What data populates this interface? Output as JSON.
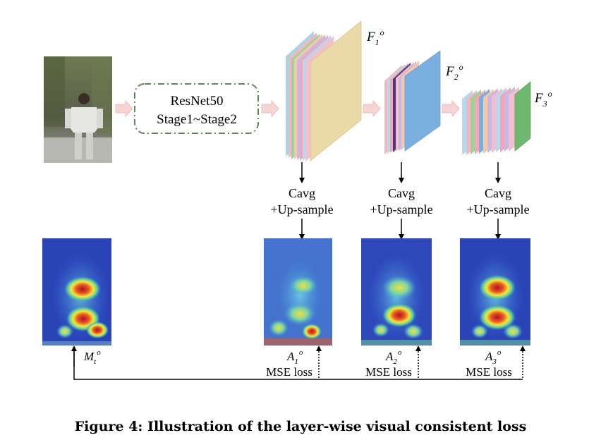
{
  "backbone": {
    "line1": "ResNet50",
    "line2": "Stage1~Stage2"
  },
  "features": [
    {
      "base": "F",
      "sub": "1",
      "sup": "o"
    },
    {
      "base": "F",
      "sub": "2",
      "sup": "o"
    },
    {
      "base": "F",
      "sub": "3",
      "sup": "o"
    }
  ],
  "pool_op": {
    "line1": "Cavg",
    "line2": "+Up-sample"
  },
  "attention_maps": [
    {
      "base": "A",
      "sub": "1",
      "sup": "o"
    },
    {
      "base": "A",
      "sub": "2",
      "sup": "o"
    },
    {
      "base": "A",
      "sub": "3",
      "sup": "o"
    }
  ],
  "target_map": {
    "base": "M",
    "sub": "t",
    "sup": "o"
  },
  "loss_label": "MSE loss",
  "caption": "Figure 4: Illustration of the layer-wise visual consistent loss",
  "colors": {
    "dash_box": "#5a8a5a",
    "flow_arrow": "#f4c6c6",
    "heat_bg": "#2a44b8"
  }
}
